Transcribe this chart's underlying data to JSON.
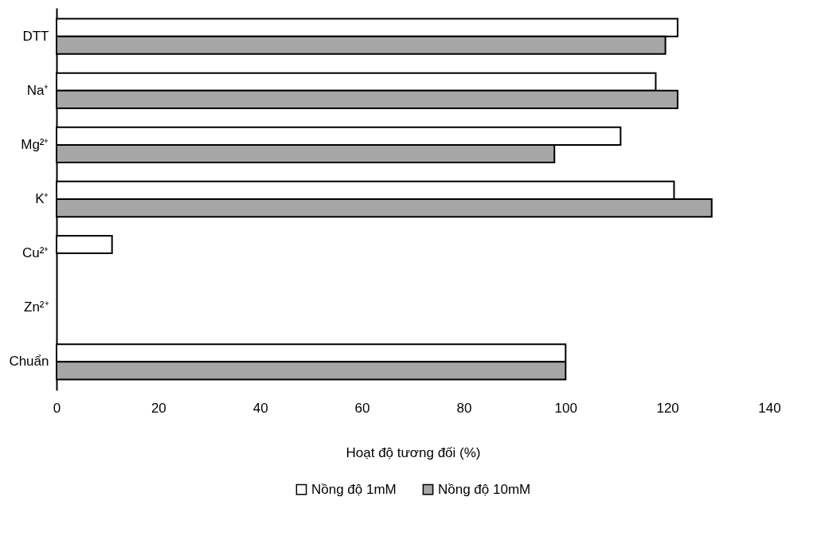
{
  "chart_data": {
    "type": "bar",
    "orientation": "horizontal",
    "xlabel": "Hoạt độ tương đối (%)",
    "categories": [
      "DTT",
      "Na⁺",
      "Mg²⁺",
      "K⁺",
      "Cu²⁺",
      "Zn²⁺",
      "Chuẩn"
    ],
    "series": [
      {
        "name": "Nồng độ 1mM",
        "color": "#ffffff",
        "values": [
          122,
          117.7,
          110.8,
          121.3,
          10.9,
          0,
          100
        ]
      },
      {
        "name": "Nồng độ 10mM",
        "color": "#a6a6a6",
        "values": [
          119.6,
          122,
          97.8,
          128.7,
          0,
          0,
          100
        ]
      }
    ],
    "xlim": [
      0,
      140
    ],
    "xticks": [
      0,
      20,
      40,
      60,
      80,
      100,
      120,
      140
    ],
    "grid": false,
    "legend": "bottom"
  }
}
